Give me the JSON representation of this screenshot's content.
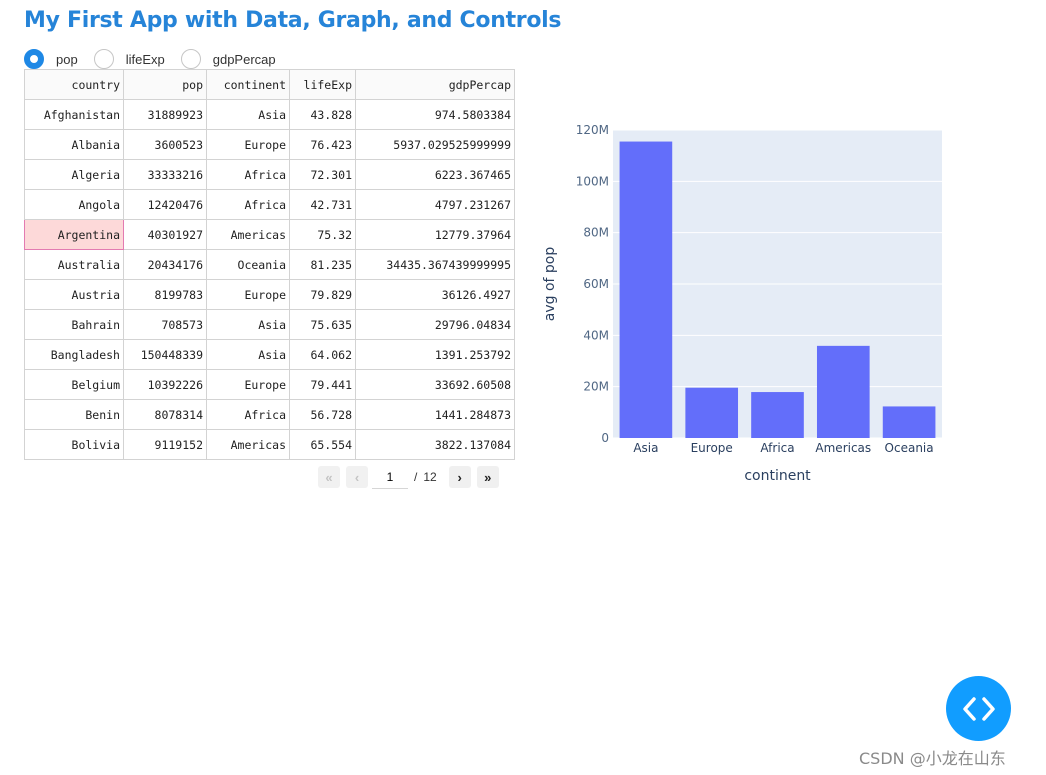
{
  "title": "My First App with Data, Graph, and Controls",
  "radio": {
    "options": [
      "pop",
      "lifeExp",
      "gdpPercap"
    ],
    "selected": "pop"
  },
  "table": {
    "columns": [
      "country",
      "pop",
      "continent",
      "lifeExp",
      "gdpPercap"
    ],
    "rows": [
      [
        "Afghanistan",
        "31889923",
        "Asia",
        "43.828",
        "974.5803384"
      ],
      [
        "Albania",
        "3600523",
        "Europe",
        "76.423",
        "5937.029525999999"
      ],
      [
        "Algeria",
        "33333216",
        "Africa",
        "72.301",
        "6223.367465"
      ],
      [
        "Angola",
        "12420476",
        "Africa",
        "42.731",
        "4797.231267"
      ],
      [
        "Argentina",
        "40301927",
        "Americas",
        "75.32",
        "12779.37964"
      ],
      [
        "Australia",
        "20434176",
        "Oceania",
        "81.235",
        "34435.367439999995"
      ],
      [
        "Austria",
        "8199783",
        "Europe",
        "79.829",
        "36126.4927"
      ],
      [
        "Bahrain",
        "708573",
        "Asia",
        "75.635",
        "29796.04834"
      ],
      [
        "Bangladesh",
        "150448339",
        "Asia",
        "64.062",
        "1391.253792"
      ],
      [
        "Belgium",
        "10392226",
        "Europe",
        "79.441",
        "33692.60508"
      ],
      [
        "Benin",
        "8078314",
        "Africa",
        "56.728",
        "1441.284873"
      ],
      [
        "Bolivia",
        "9119152",
        "Americas",
        "65.554",
        "3822.137084"
      ]
    ],
    "active_row": 4,
    "active_col": 0
  },
  "pagination": {
    "first_icon": "double-chevron-left-icon",
    "prev_icon": "chevron-left-icon",
    "next_icon": "chevron-right-icon",
    "last_icon": "double-chevron-right-icon",
    "current_page": "1",
    "separator": "/",
    "total_pages": "12"
  },
  "chart_data": {
    "type": "bar",
    "categories": [
      "Asia",
      "Europe",
      "Africa",
      "Americas",
      "Oceania"
    ],
    "values": [
      115500000,
      19600000,
      17900000,
      35900000,
      12300000
    ],
    "xlabel": "continent",
    "ylabel": "avg of pop",
    "ylim": [
      0,
      120000000
    ],
    "yticks": [
      0,
      20000000,
      40000000,
      60000000,
      80000000,
      100000000,
      120000000
    ],
    "ytick_labels": [
      "0",
      "20M",
      "40M",
      "60M",
      "80M",
      "100M",
      "120M"
    ],
    "bar_color": "#636efa",
    "plot_bg": "#e5ecf6",
    "grid": true
  },
  "fab_icon": "code-brackets-icon",
  "colors": {
    "title": "#2684d8",
    "radio_checked": "#1e88e5",
    "active_cell_bg": "#fdd9d9",
    "active_cell_border": "#e37bb1",
    "fab": "#119dff"
  },
  "watermark": "CSDN @小龙在山东"
}
